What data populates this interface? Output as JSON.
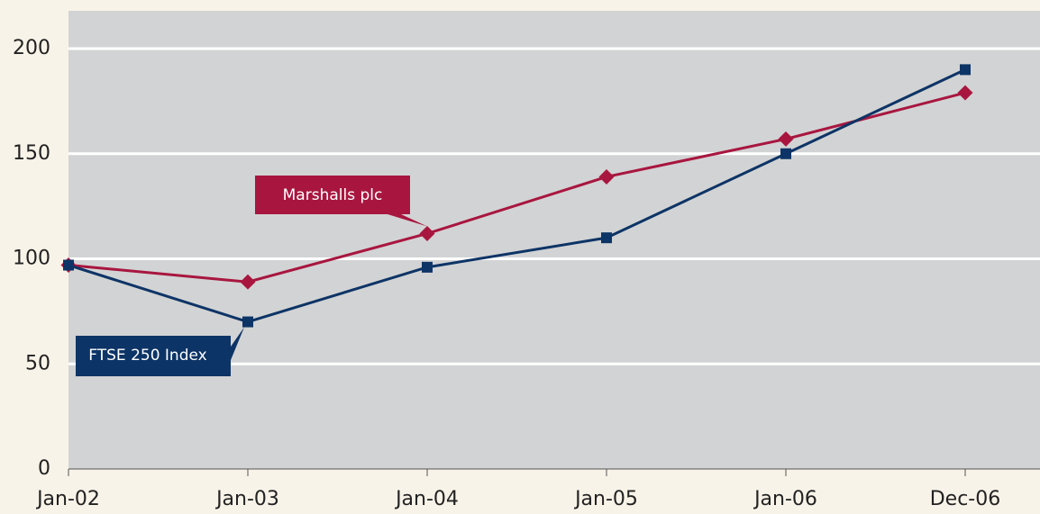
{
  "chart_data": {
    "type": "line",
    "categories": [
      "Jan-02",
      "Jan-03",
      "Jan-04",
      "Jan-05",
      "Jan-06",
      "Dec-06"
    ],
    "series": [
      {
        "name": "Marshalls plc",
        "color": "#a8163f",
        "values": [
          97,
          89,
          112,
          139,
          157,
          179
        ]
      },
      {
        "name": "FTSE 250 Index",
        "color": "#0d3466",
        "values": [
          97,
          70,
          96,
          110,
          150,
          190
        ]
      }
    ],
    "ylim": [
      0,
      218
    ],
    "yticks": [
      0,
      50,
      100,
      150,
      200
    ],
    "grid": true
  }
}
